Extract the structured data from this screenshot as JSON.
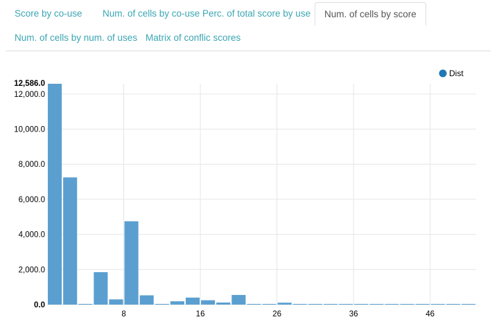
{
  "tabs": [
    {
      "label": "Score by co-use",
      "active": false
    },
    {
      "label": "Num. of cells by co-use",
      "active": false
    },
    {
      "label": "Perc. of total score by use",
      "active": false
    },
    {
      "label": "Num. of cells by score",
      "active": true
    },
    {
      "label": "Num. of cells by num. of uses",
      "active": false
    },
    {
      "label": "Matrix of conflic scores",
      "active": false
    }
  ],
  "colors": {
    "bar": "#5b9fd0",
    "legend_dot": "#1f77b4",
    "grid": "#e6e6e6",
    "tab_link": "#3ba6b3"
  },
  "chart_data": {
    "type": "bar",
    "series": [
      {
        "name": "Dist",
        "x": [
          1,
          2,
          3,
          4,
          5,
          6,
          7,
          8,
          9,
          10,
          11,
          12,
          13,
          14,
          15,
          16,
          17,
          18,
          19,
          20,
          21,
          22,
          23,
          24,
          25,
          26,
          27,
          28
        ],
        "values": [
          12586,
          7250,
          40,
          1850,
          300,
          4750,
          530,
          30,
          190,
          400,
          250,
          120,
          550,
          30,
          30,
          110,
          20,
          15,
          15,
          15,
          15,
          15,
          15,
          15,
          15,
          15,
          15,
          15
        ]
      }
    ],
    "ylim": [
      0,
      12586
    ],
    "y_ticks": [
      "0.0",
      "2,000.0",
      "4,000.0",
      "6,000.0",
      "8,000.0",
      "10,000.0",
      "12,000.0"
    ],
    "y_tick_values": [
      0,
      2000,
      4000,
      6000,
      8000,
      10000,
      12000
    ],
    "y_max_label": "12,586.0",
    "x_ticks": [
      "8",
      "16",
      "26",
      "36",
      "46"
    ],
    "x_tick_positions": [
      5,
      10,
      15,
      20,
      25
    ],
    "grid": true,
    "legend_position": "top-right"
  }
}
